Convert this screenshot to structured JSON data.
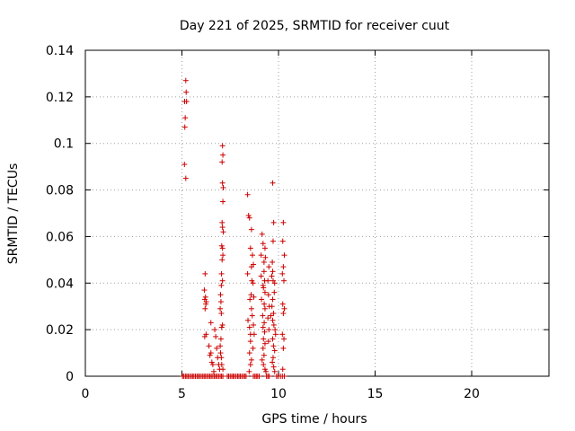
{
  "chart_data": {
    "type": "scatter",
    "title": "Day 221 of 2025, SRMTID for receiver cuut",
    "xlabel": "GPS time / hours",
    "ylabel": "SRMTID / TECUs",
    "xlim": [
      0,
      24
    ],
    "ylim": [
      0,
      0.14
    ],
    "xticks": [
      0,
      5,
      10,
      15,
      20
    ],
    "xtick_labels": [
      "0",
      "5",
      "10",
      "15",
      "20"
    ],
    "yticks": [
      0,
      0.02,
      0.04,
      0.06,
      0.08,
      0.1,
      0.12,
      0.14
    ],
    "ytick_labels": [
      "0",
      "0.02",
      "0.04",
      "0.06",
      "0.08",
      "0.1",
      "0.12",
      "0.14"
    ],
    "grid": true,
    "legend": "none",
    "marker": "plus",
    "color": "#cc0000",
    "series": [
      {
        "points": [
          [
            5.03,
            0.0
          ],
          [
            5.1,
            0.0
          ],
          [
            5.18,
            0.0
          ],
          [
            5.25,
            0.0
          ],
          [
            5.32,
            0.0
          ],
          [
            5.4,
            0.0
          ],
          [
            5.48,
            0.0
          ],
          [
            5.55,
            0.0
          ],
          [
            5.62,
            0.0
          ],
          [
            5.7,
            0.0
          ],
          [
            5.78,
            0.0
          ],
          [
            5.85,
            0.0
          ],
          [
            5.92,
            0.0
          ],
          [
            6.0,
            0.0
          ],
          [
            6.08,
            0.0
          ],
          [
            6.15,
            0.0
          ],
          [
            6.22,
            0.0
          ],
          [
            6.3,
            0.0
          ],
          [
            6.38,
            0.0
          ],
          [
            6.45,
            0.0
          ],
          [
            6.52,
            0.0
          ],
          [
            6.6,
            0.0
          ],
          [
            6.68,
            0.0
          ],
          [
            6.75,
            0.0
          ],
          [
            6.82,
            0.0
          ],
          [
            6.9,
            0.0
          ],
          [
            6.98,
            0.0
          ],
          [
            7.05,
            0.0
          ],
          [
            7.12,
            0.0
          ],
          [
            7.35,
            0.0
          ],
          [
            7.42,
            0.0
          ],
          [
            7.5,
            0.0
          ],
          [
            7.58,
            0.0
          ],
          [
            7.65,
            0.0
          ],
          [
            7.72,
            0.0
          ],
          [
            7.8,
            0.0
          ],
          [
            7.88,
            0.0
          ],
          [
            7.95,
            0.0
          ],
          [
            8.02,
            0.0
          ],
          [
            8.1,
            0.0
          ],
          [
            8.18,
            0.0
          ],
          [
            8.25,
            0.0
          ],
          [
            8.32,
            0.0
          ],
          [
            8.7,
            0.0
          ],
          [
            8.78,
            0.0
          ],
          [
            8.85,
            0.0
          ],
          [
            8.92,
            0.0
          ],
          [
            9.0,
            0.0
          ],
          [
            9.38,
            0.0
          ],
          [
            9.45,
            0.0
          ],
          [
            9.52,
            0.0
          ],
          [
            9.9,
            0.0
          ],
          [
            9.98,
            0.0
          ],
          [
            10.1,
            0.0
          ],
          [
            10.2,
            0.0
          ],
          [
            10.3,
            0.0
          ],
          [
            5.2,
            0.127
          ],
          [
            5.22,
            0.122
          ],
          [
            5.14,
            0.118
          ],
          [
            5.24,
            0.118
          ],
          [
            5.17,
            0.111
          ],
          [
            5.15,
            0.107
          ],
          [
            5.13,
            0.091
          ],
          [
            5.2,
            0.085
          ],
          [
            6.2,
            0.044
          ],
          [
            6.16,
            0.037
          ],
          [
            6.22,
            0.034
          ],
          [
            6.18,
            0.033
          ],
          [
            6.24,
            0.031
          ],
          [
            6.2,
            0.029
          ],
          [
            6.26,
            0.032
          ],
          [
            6.25,
            0.018
          ],
          [
            6.18,
            0.017
          ],
          [
            6.4,
            0.013
          ],
          [
            6.45,
            0.009
          ],
          [
            6.5,
            0.01
          ],
          [
            6.55,
            0.006
          ],
          [
            6.6,
            0.005
          ],
          [
            6.65,
            0.002
          ],
          [
            6.5,
            0.023
          ],
          [
            6.7,
            0.02
          ],
          [
            6.75,
            0.017
          ],
          [
            6.8,
            0.012
          ],
          [
            6.85,
            0.008
          ],
          [
            6.9,
            0.005
          ],
          [
            6.95,
            0.003
          ],
          [
            7.1,
            0.099
          ],
          [
            7.12,
            0.095
          ],
          [
            7.08,
            0.092
          ],
          [
            7.1,
            0.083
          ],
          [
            7.14,
            0.081
          ],
          [
            7.12,
            0.075
          ],
          [
            7.08,
            0.066
          ],
          [
            7.1,
            0.064
          ],
          [
            7.14,
            0.062
          ],
          [
            7.06,
            0.056
          ],
          [
            7.1,
            0.055
          ],
          [
            7.12,
            0.052
          ],
          [
            7.08,
            0.05
          ],
          [
            7.05,
            0.044
          ],
          [
            7.1,
            0.041
          ],
          [
            7.04,
            0.039
          ],
          [
            7.0,
            0.035
          ],
          [
            7.02,
            0.032
          ],
          [
            6.98,
            0.029
          ],
          [
            7.04,
            0.027
          ],
          [
            7.06,
            0.021
          ],
          [
            7.1,
            0.022
          ],
          [
            7.02,
            0.016
          ],
          [
            6.98,
            0.013
          ],
          [
            7.0,
            0.01
          ],
          [
            7.04,
            0.008
          ],
          [
            7.06,
            0.005
          ],
          [
            7.12,
            0.003
          ],
          [
            8.4,
            0.078
          ],
          [
            8.45,
            0.069
          ],
          [
            8.5,
            0.068
          ],
          [
            8.4,
            0.044
          ],
          [
            8.42,
            0.024
          ],
          [
            8.5,
            0.021
          ],
          [
            8.55,
            0.018
          ],
          [
            8.6,
            0.063
          ],
          [
            8.55,
            0.055
          ],
          [
            8.65,
            0.052
          ],
          [
            8.6,
            0.047
          ],
          [
            8.62,
            0.041
          ],
          [
            8.58,
            0.035
          ],
          [
            8.52,
            0.033
          ],
          [
            8.6,
            0.029
          ],
          [
            8.64,
            0.026
          ],
          [
            8.55,
            0.015
          ],
          [
            8.5,
            0.01
          ],
          [
            8.6,
            0.007
          ],
          [
            8.55,
            0.005
          ],
          [
            8.48,
            0.002
          ],
          [
            8.7,
            0.048
          ],
          [
            8.68,
            0.04
          ],
          [
            8.72,
            0.034
          ],
          [
            8.7,
            0.022
          ],
          [
            8.74,
            0.018
          ],
          [
            8.68,
            0.012
          ],
          [
            9.1,
            0.052
          ],
          [
            9.15,
            0.061
          ],
          [
            9.2,
            0.057
          ],
          [
            9.25,
            0.049
          ],
          [
            9.1,
            0.043
          ],
          [
            9.2,
            0.039
          ],
          [
            9.12,
            0.033
          ],
          [
            9.3,
            0.055
          ],
          [
            9.32,
            0.051
          ],
          [
            9.25,
            0.045
          ],
          [
            9.28,
            0.041
          ],
          [
            9.22,
            0.038
          ],
          [
            9.3,
            0.036
          ],
          [
            9.26,
            0.031
          ],
          [
            9.3,
            0.029
          ],
          [
            9.18,
            0.026
          ],
          [
            9.26,
            0.023
          ],
          [
            9.2,
            0.021
          ],
          [
            9.28,
            0.019
          ],
          [
            9.22,
            0.016
          ],
          [
            9.3,
            0.014
          ],
          [
            9.2,
            0.012
          ],
          [
            9.25,
            0.009
          ],
          [
            9.15,
            0.007
          ],
          [
            9.22,
            0.005
          ],
          [
            9.3,
            0.003
          ],
          [
            9.35,
            0.002
          ],
          [
            9.45,
            0.041
          ],
          [
            9.5,
            0.047
          ],
          [
            9.48,
            0.035
          ],
          [
            9.52,
            0.03
          ],
          [
            9.45,
            0.025
          ],
          [
            9.5,
            0.02
          ],
          [
            9.48,
            0.015
          ],
          [
            9.7,
            0.083
          ],
          [
            9.75,
            0.066
          ],
          [
            9.72,
            0.058
          ],
          [
            9.68,
            0.049
          ],
          [
            9.7,
            0.045
          ],
          [
            9.65,
            0.043
          ],
          [
            9.72,
            0.041
          ],
          [
            9.8,
            0.04
          ],
          [
            9.78,
            0.036
          ],
          [
            9.7,
            0.033
          ],
          [
            9.66,
            0.03
          ],
          [
            9.74,
            0.027
          ],
          [
            9.6,
            0.026
          ],
          [
            9.7,
            0.024
          ],
          [
            9.76,
            0.022
          ],
          [
            9.82,
            0.02
          ],
          [
            9.85,
            0.018
          ],
          [
            9.7,
            0.016
          ],
          [
            9.74,
            0.013
          ],
          [
            9.8,
            0.011
          ],
          [
            9.72,
            0.008
          ],
          [
            9.68,
            0.006
          ],
          [
            9.75,
            0.004
          ],
          [
            9.8,
            0.002
          ],
          [
            10.25,
            0.066
          ],
          [
            10.22,
            0.058
          ],
          [
            10.3,
            0.052
          ],
          [
            10.25,
            0.047
          ],
          [
            10.2,
            0.044
          ],
          [
            10.28,
            0.041
          ],
          [
            10.22,
            0.031
          ],
          [
            10.3,
            0.029
          ],
          [
            10.25,
            0.027
          ],
          [
            10.2,
            0.018
          ],
          [
            10.28,
            0.016
          ],
          [
            10.25,
            0.012
          ],
          [
            10.22,
            0.003
          ]
        ]
      }
    ]
  }
}
